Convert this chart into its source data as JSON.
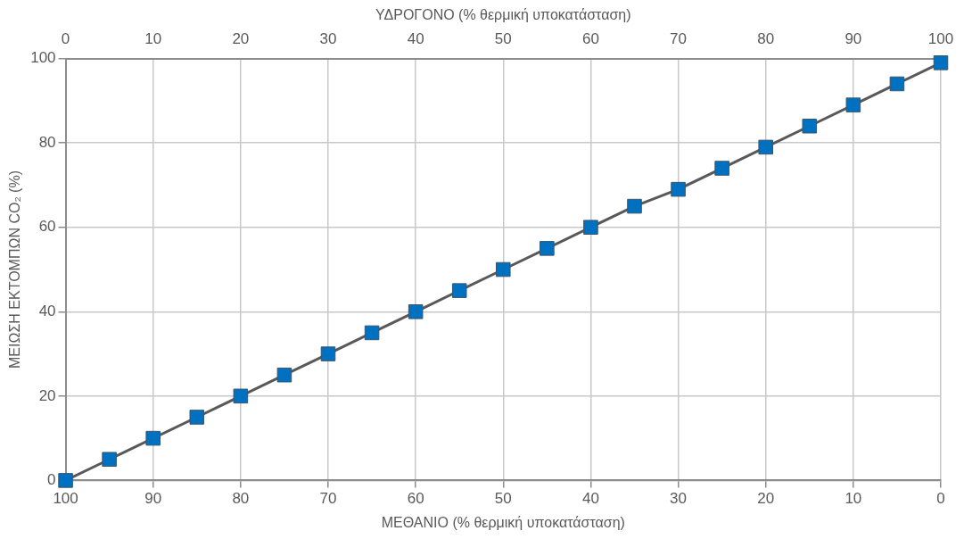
{
  "chart_data": {
    "type": "line",
    "xlabel": "ΜΕΘΑΝΙΟ (% θερμική υποκατάσταση)",
    "x2label": "ΥΔΡΟΓΟΝΟ (% θερμική υποκατάσταση)",
    "ylabel": "ΜΕΙΩΣΗ ΕΚΤΟΜΠΩΝ CO₂ (%)",
    "series": [
      {
        "color": "#0070c0",
        "x": [
          100,
          95,
          90,
          85,
          80,
          75,
          70,
          65,
          60,
          55,
          50,
          45,
          40,
          35,
          30,
          25,
          20,
          15,
          10,
          5,
          0
        ],
        "values": [
          0,
          5,
          10,
          15,
          20,
          25,
          30,
          35,
          40,
          45,
          50,
          55,
          60,
          65,
          69,
          74,
          79,
          84,
          89,
          94,
          99
        ]
      }
    ],
    "xlim": [
      100,
      0
    ],
    "xticks": [
      100,
      90,
      80,
      70,
      60,
      50,
      40,
      30,
      20,
      10,
      0
    ],
    "x2lim": [
      0,
      100
    ],
    "x2ticks": [
      0,
      10,
      20,
      30,
      40,
      50,
      60,
      70,
      80,
      90,
      100
    ],
    "ylim": [
      0,
      100
    ],
    "yticks": [
      0,
      20,
      40,
      60,
      80,
      100
    ],
    "grid": true,
    "legend": false,
    "marker": "square",
    "line_style": "solid"
  }
}
